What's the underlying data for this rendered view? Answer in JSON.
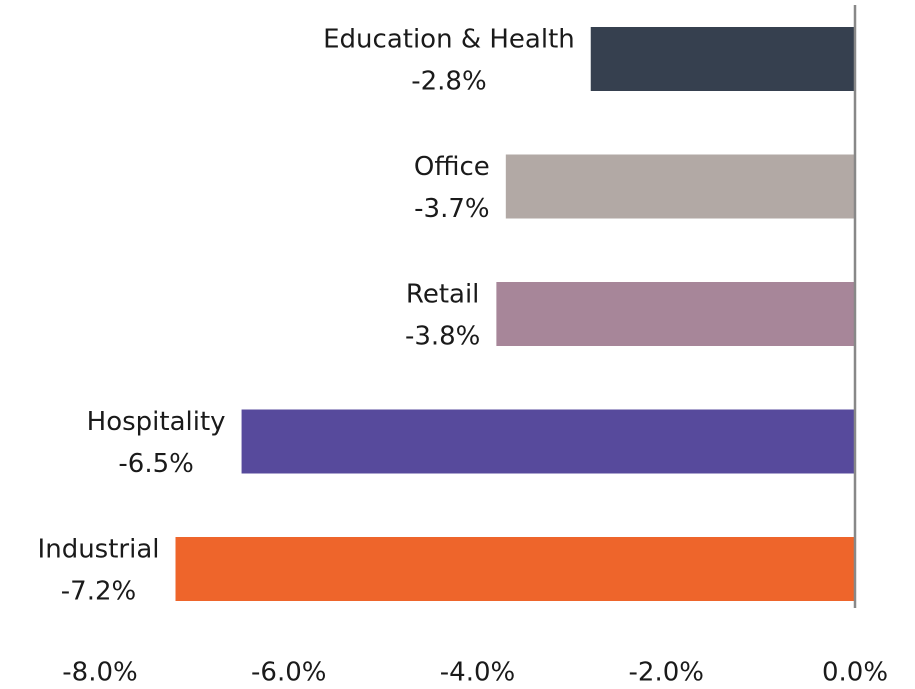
{
  "chart_data": {
    "type": "hbar",
    "categories": [
      "Education & Health",
      "Office",
      "Retail",
      "Hospitality",
      "Industrial"
    ],
    "values": [
      -2.8,
      -3.7,
      -3.8,
      -6.5,
      -7.2
    ],
    "value_labels": [
      "-2.8%",
      "-3.7%",
      "-3.8%",
      "-6.5%",
      "-7.2%"
    ],
    "colors": [
      "#36404f",
      "#b2a9a5",
      "#a78699",
      "#574a9c",
      "#ee652b"
    ],
    "xlim": [
      -8,
      0
    ],
    "xticks": [
      {
        "value": -8,
        "label": "-8.0%"
      },
      {
        "value": -6,
        "label": "-6.0%"
      },
      {
        "value": -4,
        "label": "-4.0%"
      },
      {
        "value": -2,
        "label": "-2.0%"
      },
      {
        "value": 0,
        "label": "0.0%"
      }
    ]
  }
}
